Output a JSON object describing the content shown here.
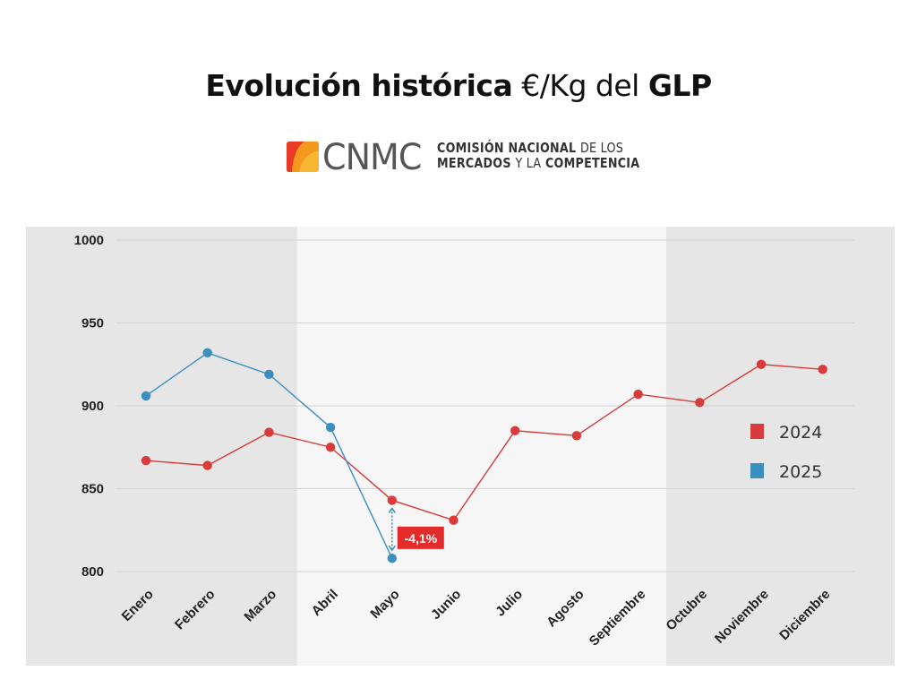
{
  "title": {
    "bold_part": "Evolución histórica",
    "regular_part": "€/Kg del",
    "bold_end": "GLP"
  },
  "logo": {
    "wordmark": "CNMC",
    "line1_bold": "COMISIÓN NACIONAL",
    "line1_light": "DE LOS",
    "line2_bold_a": "MERCADOS",
    "line2_light": "Y LA",
    "line2_bold_b": "COMPETENCIA",
    "colors": {
      "red": "#e83a26",
      "orange": "#f39a1e",
      "yellow": "#f7b733"
    }
  },
  "chart_data": {
    "type": "line",
    "categories": [
      "Enero",
      "Febrero",
      "Marzo",
      "Abril",
      "Mayo",
      "Junio",
      "Julio",
      "Agosto",
      "Septiembre",
      "Octubre",
      "Noviembre",
      "Diciembre"
    ],
    "series": [
      {
        "name": "2024",
        "color": "#d93a3a",
        "values": [
          867,
          864,
          884,
          875,
          843,
          831,
          885,
          882,
          907,
          902,
          925,
          922
        ]
      },
      {
        "name": "2025",
        "color": "#3b8fbf",
        "values": [
          906,
          932,
          919,
          887,
          808,
          null,
          null,
          null,
          null,
          null,
          null,
          null
        ]
      }
    ],
    "yticks": [
      800,
      850,
      900,
      950,
      1000
    ],
    "ylim": [
      800,
      1000
    ],
    "grid": true,
    "legend_position": "right",
    "annotation": {
      "category": "Mayo",
      "from": 843,
      "to": 808,
      "label": "-4,1%",
      "color": "#e32b2b"
    },
    "shaded_bands": [
      {
        "from": "Enero",
        "to": "Marzo",
        "color": "#e6e6e6"
      },
      {
        "from": "Abril",
        "to": "Septiembre",
        "color": "#f6f6f6"
      },
      {
        "from": "Octubre",
        "to": "Diciembre",
        "color": "#e6e6e6"
      }
    ]
  }
}
